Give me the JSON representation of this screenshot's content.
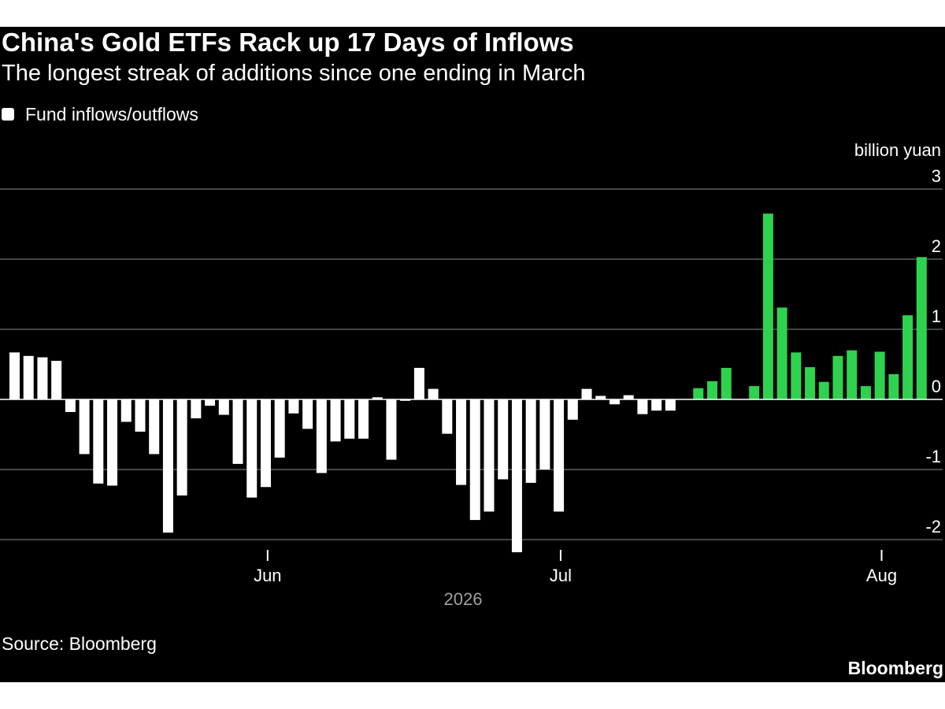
{
  "header": {
    "title": "China's Gold ETFs Rack up 17 Days of Inflows",
    "subtitle": "The longest streak of additions since one ending in March"
  },
  "legend": {
    "label": "Fund inflows/outflows"
  },
  "footer": {
    "source": "Source: Bloomberg",
    "brand": "Bloomberg"
  },
  "colors": {
    "background": "#000000",
    "bar_default": "#ffffff",
    "bar_streak": "#2fd24f",
    "gridline": "#8a8a8a",
    "axis_line": "#ffffff",
    "text": "#ffffff",
    "year_label": "#a0a0a0"
  },
  "chart_data": {
    "type": "bar",
    "title": "China's Gold ETFs Rack up 17 Days of Inflows",
    "subtitle": "The longest streak of additions since one ending in March",
    "ylabel": "billion yuan",
    "ylim": [
      -2.4,
      3
    ],
    "yticks": [
      3,
      2,
      1,
      0,
      -1,
      -2
    ],
    "ytick_labels": [
      "3",
      "2",
      "1",
      "0",
      "-1",
      "-2"
    ],
    "grid": true,
    "legend_position": "top-left",
    "xticks": [
      {
        "label": "Jun",
        "index": 18.5
      },
      {
        "label": "Jul",
        "index": 39.5
      },
      {
        "label": "Aug",
        "index": 62.5
      }
    ],
    "x_year_label": "2026",
    "streak_start_index": 49,
    "series": [
      {
        "name": "Fund inflows/outflows",
        "values": [
          0.67,
          0.62,
          0.6,
          0.55,
          -0.18,
          -0.78,
          -1.2,
          -1.23,
          -0.32,
          -0.46,
          -0.78,
          -1.9,
          -1.37,
          -0.27,
          -0.09,
          -0.22,
          -0.92,
          -1.4,
          -1.25,
          -0.83,
          -0.2,
          -0.42,
          -1.05,
          -0.6,
          -0.56,
          -0.56,
          0.03,
          -0.86,
          -0.02,
          0.45,
          0.15,
          -0.49,
          -1.22,
          -1.72,
          -1.6,
          -1.14,
          -2.18,
          -1.19,
          -1.0,
          -1.6,
          -0.29,
          0.15,
          0.05,
          -0.07,
          0.06,
          -0.21,
          -0.16,
          -0.16,
          0.0,
          0.16,
          0.26,
          0.45,
          0.0,
          0.19,
          2.65,
          1.31,
          0.67,
          0.46,
          0.25,
          0.62,
          0.7,
          0.19,
          0.68,
          0.36,
          1.2,
          2.03
        ]
      }
    ]
  }
}
